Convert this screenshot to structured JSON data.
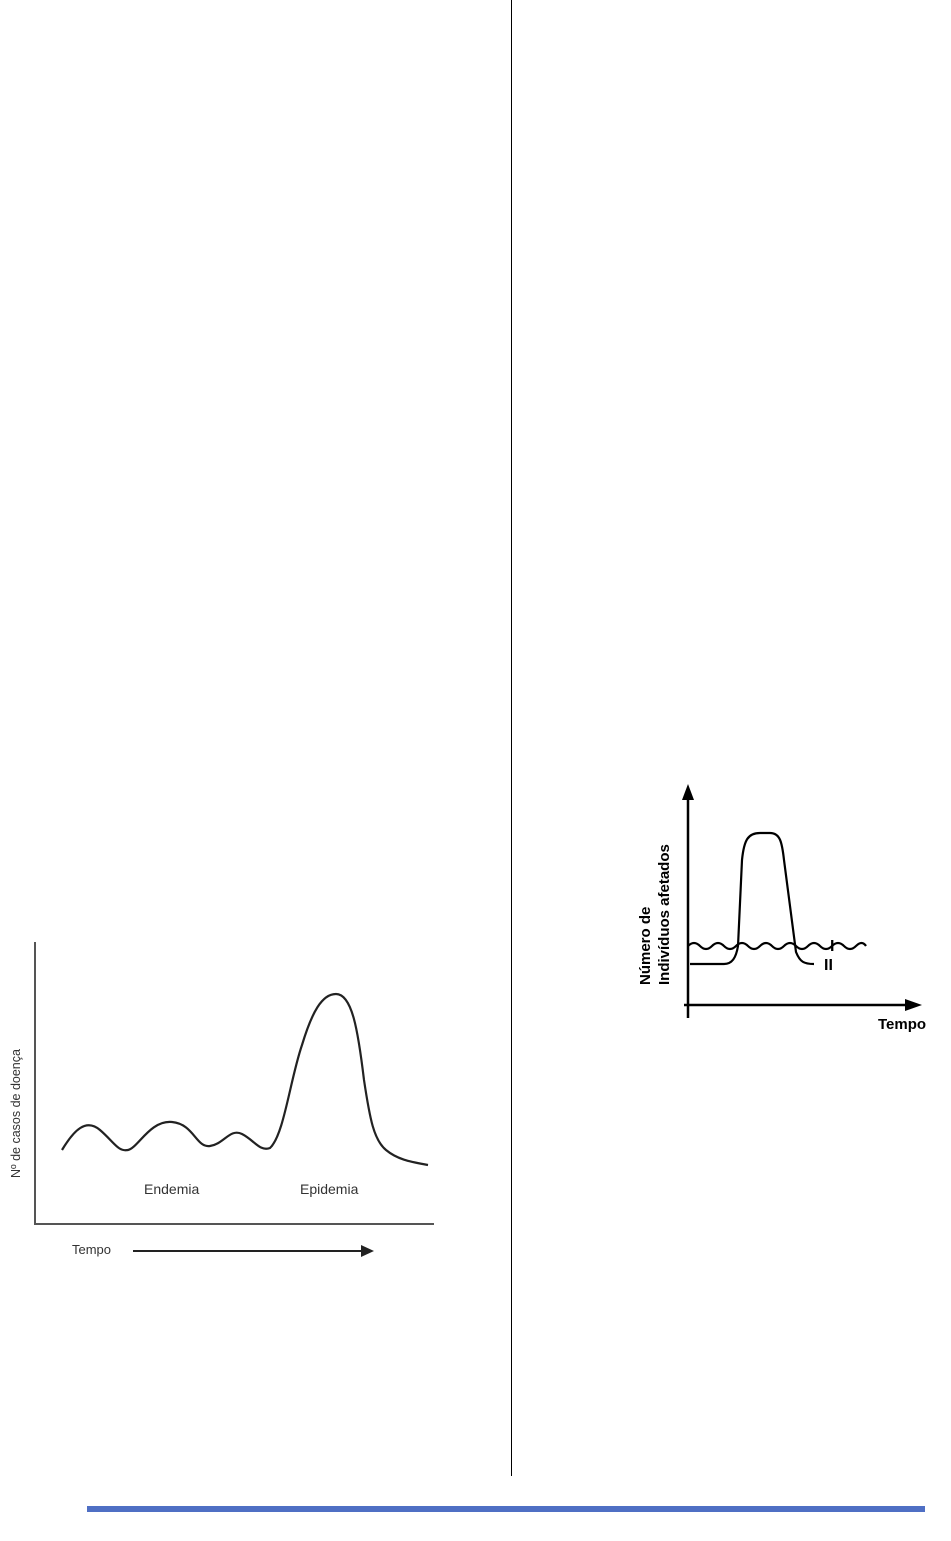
{
  "page": {
    "accent_color": "#4f6fc4"
  },
  "figures": {
    "endemia_epidemia": {
      "y_axis_label": "Nº de casos de doença",
      "x_axis_label": "Tempo",
      "region_labels": {
        "endemia": "Endemia",
        "epidemia": "Epidemia"
      }
    },
    "individuos_afetados": {
      "y_axis_label_line1": "Número de",
      "y_axis_label_line2": "Indivíduos afetados",
      "x_axis_label": "Tempo",
      "curve_labels": {
        "curve_1": "I",
        "curve_2": "II"
      }
    }
  }
}
